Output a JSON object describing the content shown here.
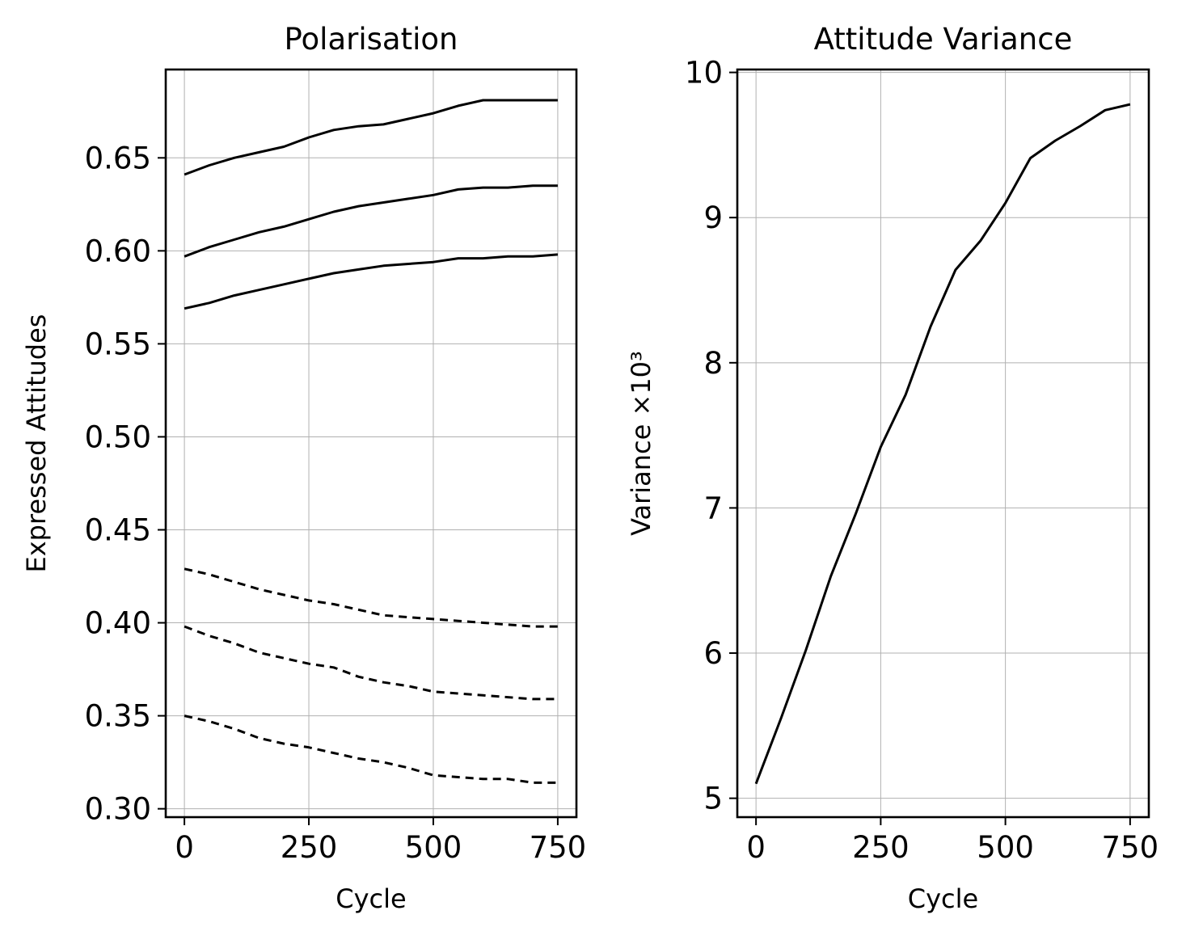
{
  "chart_data": [
    {
      "type": "line",
      "title": "Polarisation",
      "xlabel": "Cycle",
      "ylabel": "Expressed Attitudes",
      "xlim": [
        -37.5,
        787.5
      ],
      "ylim": [
        0.2955,
        0.6975
      ],
      "xticks": [
        0,
        250,
        500,
        750
      ],
      "yticks": [
        0.3,
        0.35,
        0.4,
        0.45,
        0.5,
        0.55,
        0.6,
        0.65
      ],
      "ytick_labels": [
        "0.30",
        "0.35",
        "0.40",
        "0.45",
        "0.50",
        "0.55",
        "0.60",
        "0.65"
      ],
      "grid": true,
      "legend": "none",
      "x": [
        0,
        50,
        100,
        150,
        200,
        250,
        300,
        350,
        400,
        450,
        500,
        550,
        600,
        650,
        700,
        750
      ],
      "series": [
        {
          "style": "solid",
          "color": "#000000",
          "values": [
            0.641,
            0.646,
            0.65,
            0.653,
            0.656,
            0.661,
            0.665,
            0.667,
            0.668,
            0.671,
            0.674,
            0.678,
            0.681,
            0.681,
            0.681,
            0.681
          ]
        },
        {
          "style": "solid",
          "color": "#000000",
          "values": [
            0.597,
            0.602,
            0.606,
            0.61,
            0.613,
            0.617,
            0.621,
            0.624,
            0.626,
            0.628,
            0.63,
            0.633,
            0.634,
            0.634,
            0.635,
            0.635
          ]
        },
        {
          "style": "solid",
          "color": "#000000",
          "values": [
            0.569,
            0.572,
            0.576,
            0.579,
            0.582,
            0.585,
            0.588,
            0.59,
            0.592,
            0.593,
            0.594,
            0.596,
            0.596,
            0.597,
            0.597,
            0.598
          ]
        },
        {
          "style": "dashed",
          "color": "#000000",
          "values": [
            0.429,
            0.426,
            0.422,
            0.418,
            0.415,
            0.412,
            0.41,
            0.407,
            0.404,
            0.403,
            0.402,
            0.401,
            0.4,
            0.399,
            0.398,
            0.398
          ]
        },
        {
          "style": "dashed",
          "color": "#000000",
          "values": [
            0.398,
            0.393,
            0.389,
            0.384,
            0.381,
            0.378,
            0.376,
            0.371,
            0.368,
            0.366,
            0.363,
            0.362,
            0.361,
            0.36,
            0.359,
            0.359
          ]
        },
        {
          "style": "dashed",
          "color": "#000000",
          "values": [
            0.35,
            0.347,
            0.343,
            0.338,
            0.335,
            0.333,
            0.33,
            0.327,
            0.325,
            0.322,
            0.318,
            0.317,
            0.316,
            0.316,
            0.314,
            0.314
          ]
        }
      ]
    },
    {
      "type": "line",
      "title": "Attitude Variance",
      "xlabel": "Cycle",
      "ylabel": "Variance ×10³",
      "xlim": [
        -37.5,
        787.5
      ],
      "ylim": [
        4.87,
        10.02
      ],
      "xticks": [
        0,
        250,
        500,
        750
      ],
      "yticks": [
        5,
        6,
        7,
        8,
        9,
        10
      ],
      "ytick_labels": [
        "5",
        "6",
        "7",
        "8",
        "9",
        "10"
      ],
      "grid": true,
      "legend": "none",
      "x": [
        0,
        50,
        100,
        150,
        200,
        250,
        300,
        350,
        400,
        450,
        500,
        550,
        600,
        650,
        700,
        750
      ],
      "series": [
        {
          "style": "solid",
          "color": "#000000",
          "values": [
            5.1,
            5.55,
            6.02,
            6.53,
            6.96,
            7.42,
            7.78,
            8.25,
            8.64,
            8.84,
            9.1,
            9.41,
            9.53,
            9.63,
            9.74,
            9.78
          ]
        }
      ]
    }
  ]
}
